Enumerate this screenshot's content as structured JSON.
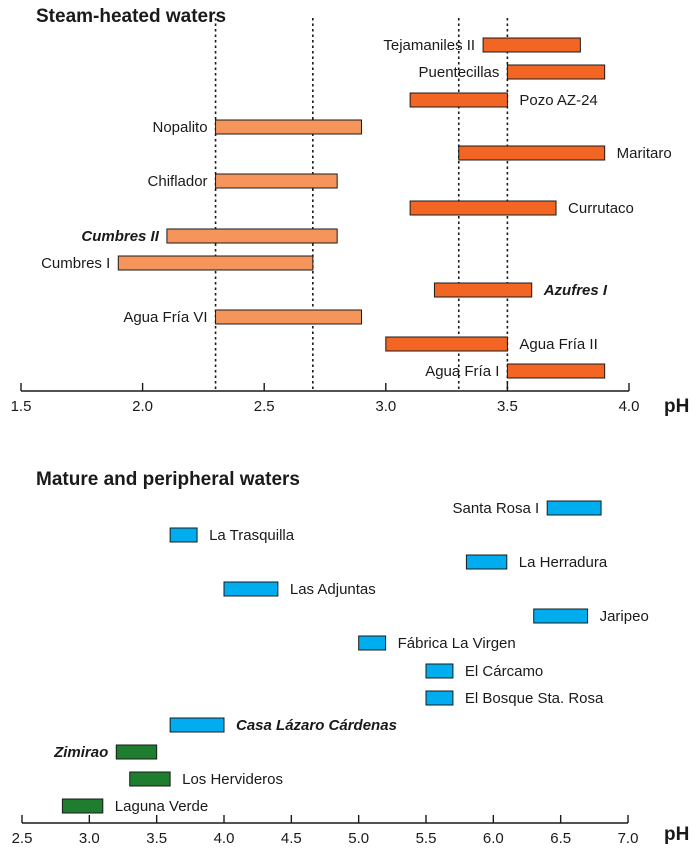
{
  "chart_data": [
    {
      "type": "bar",
      "subtype": "floating-range",
      "title": "Steam-heated waters",
      "xlabel": "pH",
      "xlim": [
        1.5,
        4.0
      ],
      "xticks": [
        "1.5",
        "2.0",
        "2.5",
        "3.0",
        "3.5",
        "4.0"
      ],
      "reference_lines": [
        2.3,
        2.7,
        3.3,
        3.5
      ],
      "colors": {
        "group_a": "#f5955b",
        "group_b": "#f26522"
      },
      "series": [
        {
          "name": "Tejamaniles II",
          "min": 3.4,
          "max": 3.8,
          "group": "group_b",
          "emphasis": false
        },
        {
          "name": "Puentecillas",
          "min": 3.5,
          "max": 3.9,
          "group": "group_b",
          "emphasis": false
        },
        {
          "name": "Pozo AZ-24",
          "min": 3.1,
          "max": 3.5,
          "group": "group_b",
          "emphasis": false
        },
        {
          "name": "Nopalito",
          "min": 2.3,
          "max": 2.9,
          "group": "group_a",
          "emphasis": false
        },
        {
          "name": "Maritaro",
          "min": 3.3,
          "max": 3.9,
          "group": "group_b",
          "emphasis": false
        },
        {
          "name": "Chiflador",
          "min": 2.3,
          "max": 2.8,
          "group": "group_a",
          "emphasis": false
        },
        {
          "name": "Currutaco",
          "min": 3.1,
          "max": 3.7,
          "group": "group_b",
          "emphasis": false
        },
        {
          "name": "Cumbres II",
          "min": 2.1,
          "max": 2.8,
          "group": "group_a",
          "emphasis": true
        },
        {
          "name": "Cumbres I",
          "min": 1.9,
          "max": 2.7,
          "group": "group_a",
          "emphasis": false
        },
        {
          "name": "Azufres I",
          "min": 3.2,
          "max": 3.6,
          "group": "group_b",
          "emphasis": true
        },
        {
          "name": "Agua Fría VI",
          "min": 2.3,
          "max": 2.9,
          "group": "group_a",
          "emphasis": false
        },
        {
          "name": "Agua Fría II",
          "min": 3.0,
          "max": 3.5,
          "group": "group_b",
          "emphasis": false
        },
        {
          "name": "Agua Fría I",
          "min": 3.5,
          "max": 3.9,
          "group": "group_b",
          "emphasis": false
        }
      ]
    },
    {
      "type": "bar",
      "subtype": "floating-range",
      "title": "Mature and peripheral waters",
      "xlabel": "pH",
      "xlim": [
        2.5,
        7.0
      ],
      "xticks": [
        "2.5",
        "3.0",
        "3.5",
        "4.0",
        "4.5",
        "5.0",
        "5.5",
        "6.0",
        "6.5",
        "7.0"
      ],
      "colors": {
        "mature": "#00aeef",
        "peripheral": "#1e7d2e"
      },
      "series": [
        {
          "name": "Santa Rosa I",
          "min": 6.4,
          "max": 6.8,
          "group": "mature",
          "emphasis": false
        },
        {
          "name": "La Trasquilla",
          "min": 3.6,
          "max": 3.8,
          "group": "mature",
          "emphasis": false
        },
        {
          "name": "La Herradura",
          "min": 5.8,
          "max": 6.1,
          "group": "mature",
          "emphasis": false
        },
        {
          "name": "Las Adjuntas",
          "min": 4.0,
          "max": 4.4,
          "group": "mature",
          "emphasis": false
        },
        {
          "name": "Jaripeo",
          "min": 6.3,
          "max": 6.7,
          "group": "mature",
          "emphasis": false
        },
        {
          "name": "Fábrica La Virgen",
          "min": 5.0,
          "max": 5.2,
          "group": "mature",
          "emphasis": false
        },
        {
          "name": "El Cárcamo",
          "min": 5.5,
          "max": 5.7,
          "group": "mature",
          "emphasis": false
        },
        {
          "name": "El Bosque Sta. Rosa",
          "min": 5.5,
          "max": 5.7,
          "group": "mature",
          "emphasis": false
        },
        {
          "name": "Casa Lázaro Cárdenas",
          "min": 3.6,
          "max": 4.0,
          "group": "mature",
          "emphasis": true
        },
        {
          "name": "Zimirao",
          "min": 3.2,
          "max": 3.5,
          "group": "peripheral",
          "emphasis": true
        },
        {
          "name": "Los Hervideros",
          "min": 3.3,
          "max": 3.6,
          "group": "peripheral",
          "emphasis": false
        },
        {
          "name": "Laguna Verde",
          "min": 2.8,
          "max": 3.1,
          "group": "peripheral",
          "emphasis": false
        }
      ]
    }
  ]
}
